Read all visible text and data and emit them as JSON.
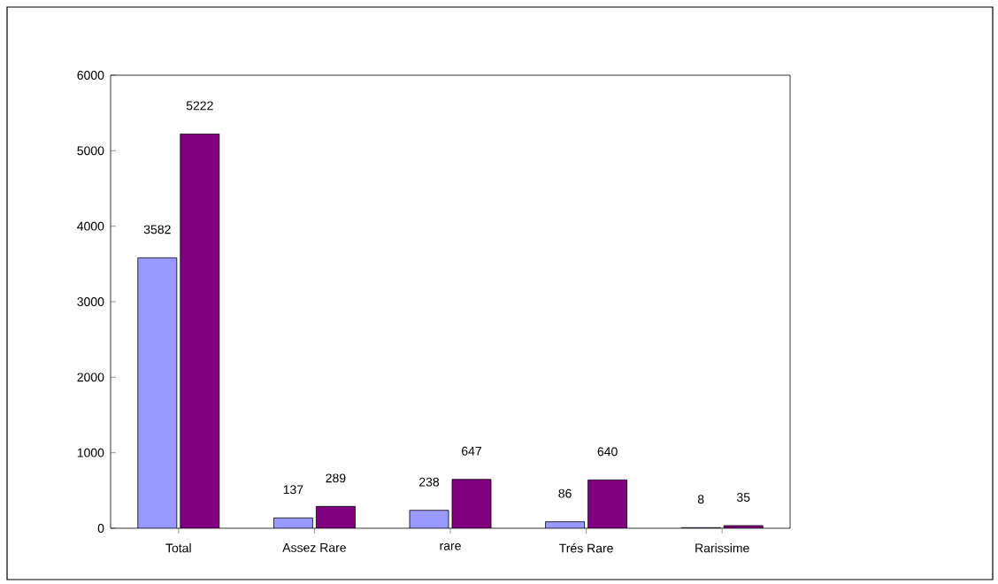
{
  "chart_data": {
    "type": "bar",
    "categories": [
      "Total",
      "Assez Rare",
      "rare",
      "Trés Rare",
      "Rarissime"
    ],
    "series": [
      {
        "color": "#9999ff",
        "values": [
          3582,
          137,
          238,
          86,
          8
        ]
      },
      {
        "color": "#800080",
        "values": [
          5222,
          289,
          647,
          640,
          35
        ]
      }
    ],
    "ylim": [
      0,
      6000
    ],
    "yticks": [
      0,
      1000,
      2000,
      3000,
      4000,
      5000,
      6000
    ],
    "grid": false,
    "data_labels": true
  }
}
